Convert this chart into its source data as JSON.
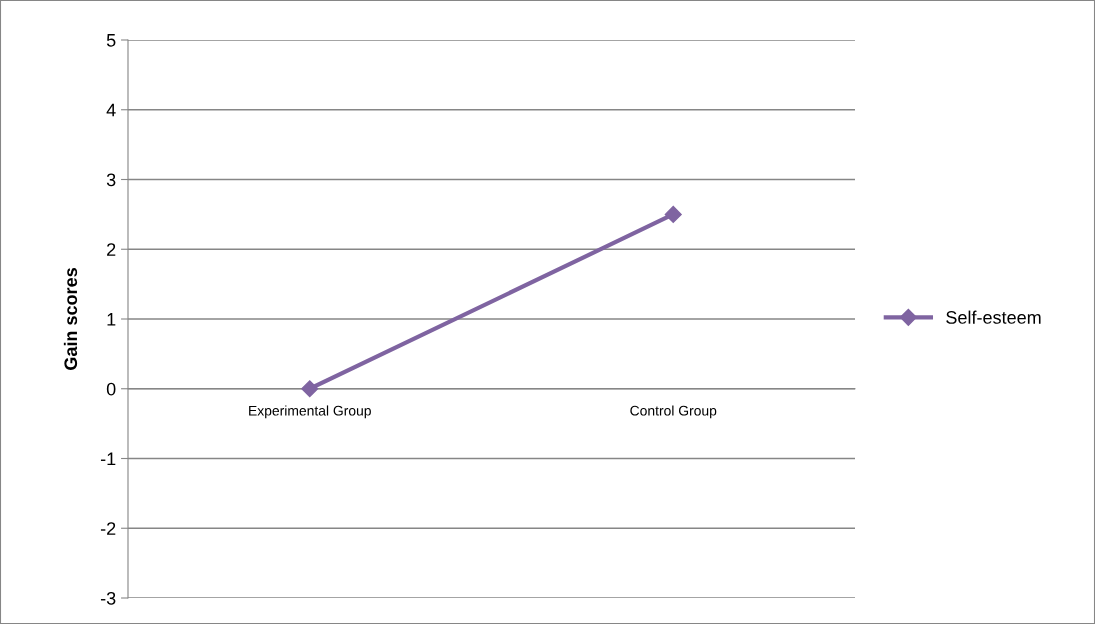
{
  "chart_data": {
    "type": "line",
    "ylabel": "Gain scores",
    "categories": [
      "Experimental Group",
      "Control Group"
    ],
    "series": [
      {
        "name": "Self-esteem",
        "color": "#7f64a1",
        "values": [
          0,
          2.5
        ]
      }
    ],
    "ylim": [
      -3,
      5
    ],
    "yticks": [
      -3,
      -2,
      -1,
      0,
      1,
      2,
      3,
      4,
      5
    ],
    "grid": "y",
    "legend": "right",
    "marker": "diamond",
    "line_style": "solid"
  }
}
